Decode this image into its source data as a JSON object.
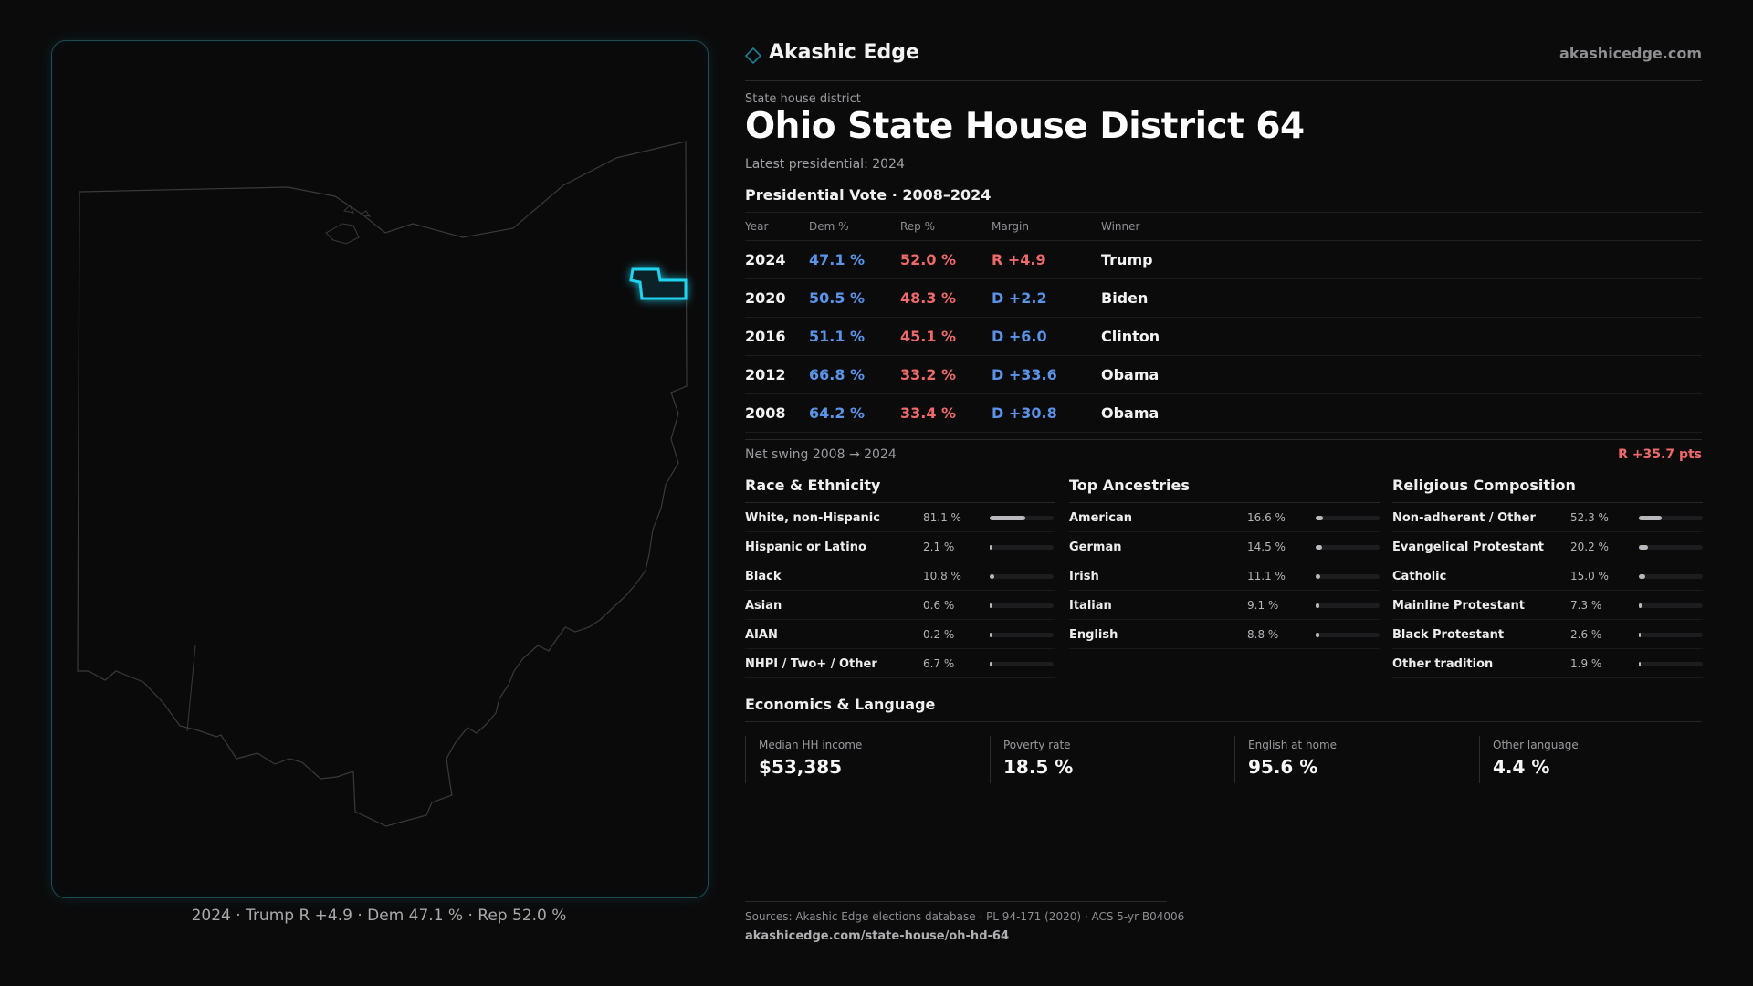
{
  "map": {
    "caption": "2024 · Trump R +4.9 · Dem 47.1 % · Rep 52.0 %",
    "outline_color": "#3a3a3e",
    "highlight_color": "#22d3ee"
  },
  "header": {
    "brand_icon": "diamond-icon",
    "brand": "Akashic Edge",
    "site": "akashicedge.com"
  },
  "district": {
    "kicker": "State house district",
    "title": "Ohio State House District 64",
    "subtitle": "Latest presidential: 2024"
  },
  "presidential": {
    "heading": "Presidential Vote · 2008–2024",
    "columns": [
      "Year",
      "Dem %",
      "Rep %",
      "Margin",
      "Winner"
    ],
    "rows": [
      {
        "year": "2024",
        "dem": "47.1 %",
        "rep": "52.0 %",
        "margin": "R +4.9",
        "winner": "Trump",
        "party": "R"
      },
      {
        "year": "2020",
        "dem": "50.5 %",
        "rep": "48.3 %",
        "margin": "D +2.2",
        "winner": "Biden",
        "party": "D"
      },
      {
        "year": "2016",
        "dem": "51.1 %",
        "rep": "45.1 %",
        "margin": "D +6.0",
        "winner": "Clinton",
        "party": "D"
      },
      {
        "year": "2012",
        "dem": "66.8 %",
        "rep": "33.2 %",
        "margin": "D +33.6",
        "winner": "Obama",
        "party": "D"
      },
      {
        "year": "2008",
        "dem": "64.2 %",
        "rep": "33.4 %",
        "margin": "D +30.8",
        "winner": "Obama",
        "party": "D"
      }
    ],
    "swing_label": "Net swing 2008 → 2024",
    "swing_value": "R +35.7 pts"
  },
  "race": {
    "heading": "Race & Ethnicity",
    "items": [
      {
        "label": "White, non-Hispanic",
        "pct": "81.1 %",
        "value": 81.1
      },
      {
        "label": "Hispanic or Latino",
        "pct": "2.1 %",
        "value": 2.1
      },
      {
        "label": "Black",
        "pct": "10.8 %",
        "value": 10.8
      },
      {
        "label": "Asian",
        "pct": "0.6 %",
        "value": 0.6
      },
      {
        "label": "AIAN",
        "pct": "0.2 %",
        "value": 0.2
      },
      {
        "label": "NHPI / Two+ / Other",
        "pct": "6.7 %",
        "value": 6.7
      }
    ]
  },
  "ancestry": {
    "heading": "Top Ancestries",
    "items": [
      {
        "label": "American",
        "pct": "16.6 %",
        "value": 16.6
      },
      {
        "label": "German",
        "pct": "14.5 %",
        "value": 14.5
      },
      {
        "label": "Irish",
        "pct": "11.1 %",
        "value": 11.1
      },
      {
        "label": "Italian",
        "pct": "9.1 %",
        "value": 9.1
      },
      {
        "label": "English",
        "pct": "8.8 %",
        "value": 8.8
      }
    ]
  },
  "religion": {
    "heading": "Religious Composition",
    "items": [
      {
        "label": "Non-adherent / Other",
        "pct": "52.3 %",
        "value": 52.3
      },
      {
        "label": "Evangelical Protestant",
        "pct": "20.2 %",
        "value": 20.2
      },
      {
        "label": "Catholic",
        "pct": "15.0 %",
        "value": 15.0
      },
      {
        "label": "Mainline Protestant",
        "pct": "7.3 %",
        "value": 7.3
      },
      {
        "label": "Black Protestant",
        "pct": "2.6 %",
        "value": 2.6
      },
      {
        "label": "Other tradition",
        "pct": "1.9 %",
        "value": 1.9
      }
    ]
  },
  "economics": {
    "heading": "Economics & Language",
    "metrics": [
      {
        "label": "Median HH income",
        "value": "$53,385"
      },
      {
        "label": "Poverty rate",
        "value": "18.5 %"
      },
      {
        "label": "English at home",
        "value": "95.6 %"
      },
      {
        "label": "Other language",
        "value": "4.4 %"
      }
    ]
  },
  "footer": {
    "sources": "Sources: Akashic Edge elections database · PL 94-171 (2020) · ACS 5-yr B04006",
    "url": "akashicedge.com/state-house/oh-hd-64"
  },
  "colors": {
    "dem": "#5b93e8",
    "rep": "#ee6a6a",
    "accent": "#22d3ee"
  }
}
